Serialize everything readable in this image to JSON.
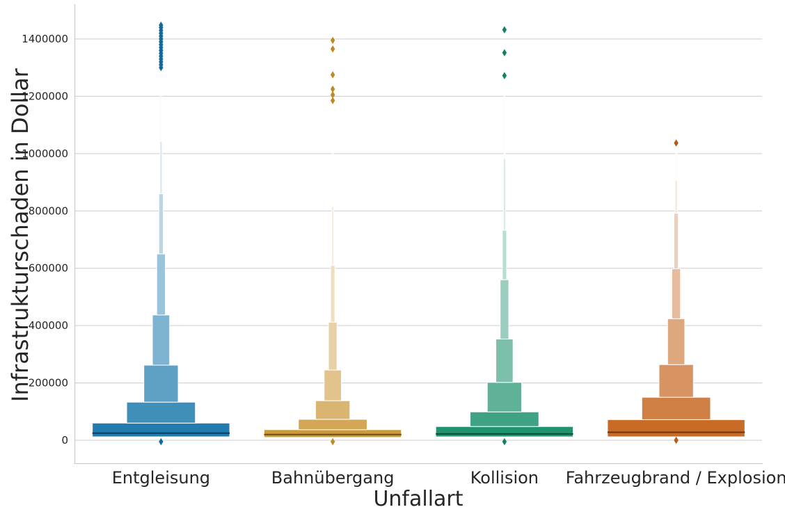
{
  "chart_data": {
    "type": "boxen",
    "xlabel": "Unfallart",
    "ylabel": "Infrastrukturschaden in Dollar",
    "ylim": [
      -75000,
      1520000
    ],
    "yticks": [
      0,
      200000,
      400000,
      600000,
      800000,
      1000000,
      1200000,
      1400000
    ],
    "ytick_labels": [
      "0",
      "200000",
      "400000",
      "600000",
      "800000",
      "1000000",
      "1200000",
      "1400000"
    ],
    "grid": "horizontal",
    "categories": [
      "Entgleisung",
      "Bahnübergang",
      "Kollision",
      "Fahrzeugbrand / Explosion"
    ],
    "groups": [
      {
        "name": "Entgleisung",
        "color": "#0f71a8",
        "median": 25000,
        "boxes": [
          {
            "low": 12000,
            "high": 60000
          },
          {
            "low": 60000,
            "high": 133000
          },
          {
            "low": 133000,
            "high": 262000
          },
          {
            "low": 262000,
            "high": 437000
          },
          {
            "low": 437000,
            "high": 650000
          },
          {
            "low": 650000,
            "high": 860000
          },
          {
            "low": 860000,
            "high": 1043000
          },
          {
            "low": 1043000,
            "high": 1200000
          }
        ],
        "outliers": [
          -5000,
          1300000,
          1310000,
          1320000,
          1330000,
          1340000,
          1350000,
          1360000,
          1370000,
          1380000,
          1390000,
          1400000,
          1410000,
          1420000,
          1430000,
          1440000,
          1448000
        ]
      },
      {
        "name": "Bahnübergang",
        "color": "#c8902a",
        "median": 20000,
        "boxes": [
          {
            "low": 10000,
            "high": 37000
          },
          {
            "low": 37000,
            "high": 73000
          },
          {
            "low": 73000,
            "high": 138000
          },
          {
            "low": 138000,
            "high": 245000
          },
          {
            "low": 245000,
            "high": 412000
          },
          {
            "low": 412000,
            "high": 610000
          },
          {
            "low": 610000,
            "high": 815000
          },
          {
            "low": 815000,
            "high": 1000000
          }
        ],
        "outliers": [
          -5000,
          1185000,
          1205000,
          1225000,
          1275000,
          1365000,
          1395000
        ]
      },
      {
        "name": "Kollision",
        "color": "#0f8a64",
        "median": 22000,
        "boxes": [
          {
            "low": 12000,
            "high": 48000
          },
          {
            "low": 48000,
            "high": 99000
          },
          {
            "low": 99000,
            "high": 202000
          },
          {
            "low": 202000,
            "high": 353000
          },
          {
            "low": 353000,
            "high": 560000
          },
          {
            "low": 560000,
            "high": 733000
          },
          {
            "low": 733000,
            "high": 983000
          },
          {
            "low": 983000,
            "high": 1200000
          }
        ],
        "outliers": [
          -5000,
          1272000,
          1352000,
          1432000
        ]
      },
      {
        "name": "Fahrzeugbrand / Explosion",
        "color": "#c35e14",
        "median": 28000,
        "boxes": [
          {
            "low": 12000,
            "high": 72000
          },
          {
            "low": 72000,
            "high": 150000
          },
          {
            "low": 150000,
            "high": 264000
          },
          {
            "low": 264000,
            "high": 424000
          },
          {
            "low": 424000,
            "high": 598000
          },
          {
            "low": 598000,
            "high": 792000
          },
          {
            "low": 792000,
            "high": 905000
          },
          {
            "low": 905000,
            "high": 1000000
          }
        ],
        "outliers": [
          0,
          1037000
        ]
      }
    ]
  }
}
